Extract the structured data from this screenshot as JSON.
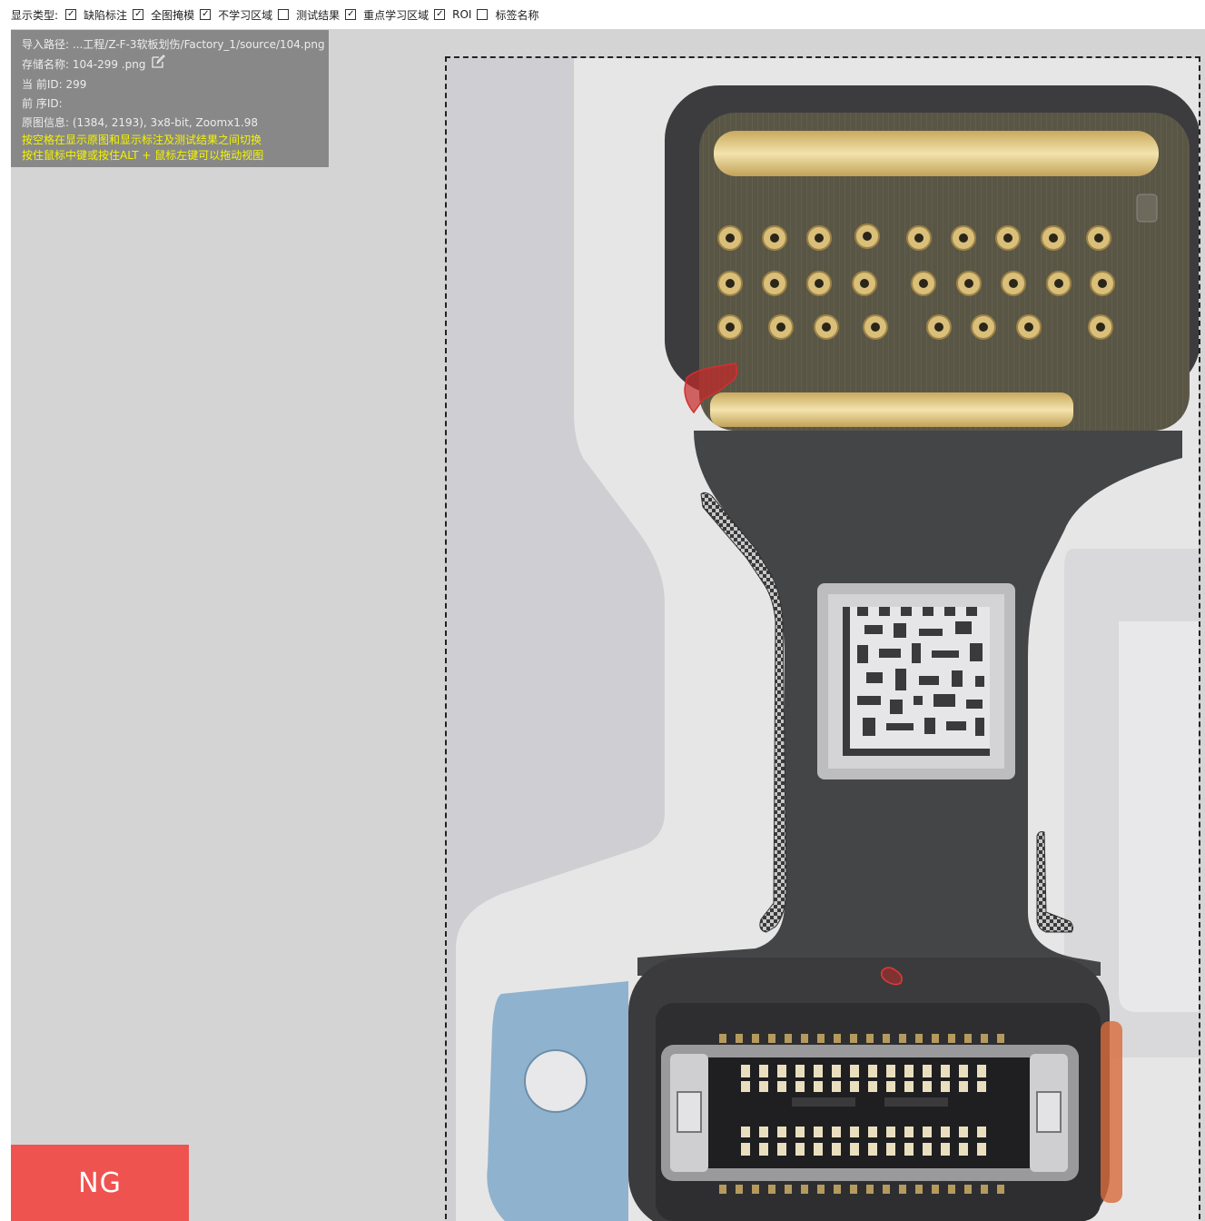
{
  "toolbar": {
    "label": "显示类型:",
    "options": [
      {
        "label": "缺陷标注",
        "checked": true
      },
      {
        "label": "全图掩模",
        "checked": true
      },
      {
        "label": "不学习区域",
        "checked": true
      },
      {
        "label": "测试结果",
        "checked": false
      },
      {
        "label": "重点学习区域",
        "checked": true
      },
      {
        "label": "ROI",
        "checked": true
      },
      {
        "label": "标签名称",
        "checked": false
      }
    ]
  },
  "info": {
    "import_path": "导入路径: ...工程/Z-F-3软板划伤/Factory_1/source/104.png",
    "save_name": "存储名称: 104-299  .png",
    "current_id": "当 前ID: 299",
    "prev_id": "前 序ID:",
    "image_info": "原图信息: (1384, 2193), 3x8-bit, Zoomx1.98",
    "hint1": "按空格在显示原图和显示标注及测试结果之间切换",
    "hint2": "按住鼠标中键或按住ALT + 鼠标左键可以拖动视图",
    "edit_icon": "edit-icon"
  },
  "result": {
    "label": "NG",
    "color": "#ef5350"
  },
  "colors": {
    "workspace": "#d4d4d4",
    "info_panel": "#888888",
    "hint_text": "#f4f400",
    "defect": "#c62828"
  }
}
